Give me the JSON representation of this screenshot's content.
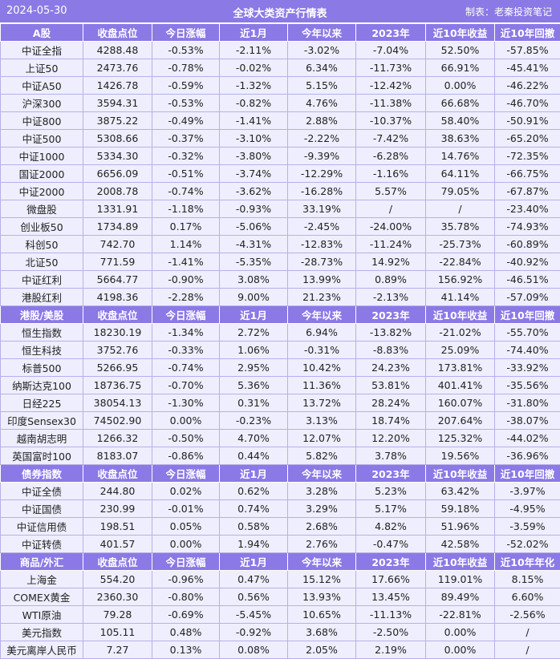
{
  "header": {
    "date": "2024-05-30",
    "title": "全球大类资产行情表",
    "source": "制表：老秦投资笔记"
  },
  "colors": {
    "header_bg": "#8b79e6",
    "row_bg": "#eeeefe"
  },
  "sections": [
    {
      "headers": [
        "A股",
        "收盘点位",
        "今日涨幅",
        "近1月",
        "今年以来",
        "2023年",
        "近10年收益",
        "近10年回撤"
      ],
      "rows": [
        [
          "中证全指",
          "4288.48",
          "-0.53%",
          "-2.11%",
          "-3.02%",
          "-7.04%",
          "52.50%",
          "-57.85%"
        ],
        [
          "上证50",
          "2473.76",
          "-0.78%",
          "-0.02%",
          "6.34%",
          "-11.73%",
          "66.91%",
          "-45.41%"
        ],
        [
          "中证A50",
          "1426.78",
          "-0.59%",
          "-1.32%",
          "5.15%",
          "-12.42%",
          "0.00%",
          "-46.22%"
        ],
        [
          "沪深300",
          "3594.31",
          "-0.53%",
          "-0.82%",
          "4.76%",
          "-11.38%",
          "66.68%",
          "-46.70%"
        ],
        [
          "中证800",
          "3875.22",
          "-0.49%",
          "-1.41%",
          "2.88%",
          "-10.37%",
          "58.40%",
          "-50.91%"
        ],
        [
          "中证500",
          "5308.66",
          "-0.37%",
          "-3.10%",
          "-2.22%",
          "-7.42%",
          "38.63%",
          "-65.20%"
        ],
        [
          "中证1000",
          "5334.30",
          "-0.32%",
          "-3.80%",
          "-9.39%",
          "-6.28%",
          "14.76%",
          "-72.35%"
        ],
        [
          "国证2000",
          "6656.09",
          "-0.51%",
          "-3.74%",
          "-12.29%",
          "-1.16%",
          "64.11%",
          "-66.75%"
        ],
        [
          "中证2000",
          "2008.78",
          "-0.74%",
          "-3.62%",
          "-16.28%",
          "5.57%",
          "79.05%",
          "-67.87%"
        ],
        [
          "微盘股",
          "1331.91",
          "-1.18%",
          "-0.93%",
          "33.19%",
          "/",
          "/",
          "-23.40%"
        ],
        [
          "创业板50",
          "1734.89",
          "0.17%",
          "-5.06%",
          "-2.45%",
          "-24.00%",
          "35.78%",
          "-74.93%"
        ],
        [
          "科创50",
          "742.70",
          "1.14%",
          "-4.31%",
          "-12.83%",
          "-11.24%",
          "-25.73%",
          "-60.89%"
        ],
        [
          "北证50",
          "771.59",
          "-1.41%",
          "-5.35%",
          "-28.73%",
          "14.92%",
          "-22.84%",
          "-40.92%"
        ],
        [
          "中证红利",
          "5664.77",
          "-0.90%",
          "3.08%",
          "13.99%",
          "0.89%",
          "156.92%",
          "-46.51%"
        ],
        [
          "港股红利",
          "4198.36",
          "-2.28%",
          "9.00%",
          "21.23%",
          "-2.13%",
          "41.14%",
          "-57.09%"
        ]
      ]
    },
    {
      "headers": [
        "港股/美股",
        "收盘点位",
        "今日涨幅",
        "近1月",
        "今年以来",
        "2023年",
        "近10年收益",
        "近10年回撤"
      ],
      "rows": [
        [
          "恒生指数",
          "18230.19",
          "-1.34%",
          "2.72%",
          "6.94%",
          "-13.82%",
          "-21.02%",
          "-55.70%"
        ],
        [
          "恒生科技",
          "3752.76",
          "-0.33%",
          "1.06%",
          "-0.31%",
          "-8.83%",
          "25.09%",
          "-74.40%"
        ],
        [
          "标普500",
          "5266.95",
          "-0.74%",
          "2.95%",
          "10.42%",
          "24.23%",
          "173.81%",
          "-33.92%"
        ],
        [
          "纳斯达克100",
          "18736.75",
          "-0.70%",
          "5.36%",
          "11.36%",
          "53.81%",
          "401.41%",
          "-35.56%"
        ],
        [
          "日经225",
          "38054.13",
          "-1.30%",
          "0.31%",
          "13.72%",
          "28.24%",
          "160.07%",
          "-31.80%"
        ],
        [
          "印度Sensex30",
          "74502.90",
          "0.00%",
          "-0.23%",
          "3.13%",
          "18.74%",
          "207.64%",
          "-38.07%"
        ],
        [
          "越南胡志明",
          "1266.32",
          "-0.50%",
          "4.70%",
          "12.07%",
          "12.20%",
          "125.32%",
          "-44.02%"
        ],
        [
          "英国富时100",
          "8183.07",
          "-0.86%",
          "0.44%",
          "5.82%",
          "3.78%",
          "19.56%",
          "-36.96%"
        ]
      ]
    },
    {
      "headers": [
        "债券指数",
        "收盘点位",
        "今日涨幅",
        "近1月",
        "今年以来",
        "2023年",
        "近10年收益",
        "近10年回撤"
      ],
      "rows": [
        [
          "中证全债",
          "244.80",
          "0.02%",
          "0.62%",
          "3.28%",
          "5.23%",
          "63.42%",
          "-3.97%"
        ],
        [
          "中证国债",
          "230.99",
          "-0.01%",
          "0.74%",
          "3.29%",
          "5.17%",
          "59.18%",
          "-4.95%"
        ],
        [
          "中证信用债",
          "198.51",
          "0.05%",
          "0.58%",
          "2.68%",
          "4.82%",
          "51.96%",
          "-3.59%"
        ],
        [
          "中证转债",
          "401.57",
          "0.00%",
          "1.94%",
          "2.76%",
          "-0.47%",
          "42.58%",
          "-52.02%"
        ]
      ]
    },
    {
      "headers": [
        "商品/外汇",
        "收盘点位",
        "今日涨幅",
        "近1月",
        "今年以来",
        "2023年",
        "近10年收益",
        "近10年年化"
      ],
      "rows": [
        [
          "上海金",
          "554.20",
          "-0.96%",
          "0.47%",
          "15.12%",
          "17.66%",
          "119.01%",
          "8.15%"
        ],
        [
          "COMEX黄金",
          "2360.30",
          "-0.80%",
          "0.56%",
          "13.93%",
          "13.45%",
          "89.49%",
          "6.60%"
        ],
        [
          "WTI原油",
          "79.28",
          "-0.69%",
          "-5.45%",
          "10.65%",
          "-11.13%",
          "-22.81%",
          "-2.56%"
        ],
        [
          "美元指数",
          "105.11",
          "0.48%",
          "-0.92%",
          "3.68%",
          "-2.50%",
          "0.00%",
          "/"
        ],
        [
          "美元离岸人民币",
          "7.27",
          "0.13%",
          "0.08%",
          "2.05%",
          "2.19%",
          "0.00%",
          "/"
        ]
      ]
    }
  ]
}
